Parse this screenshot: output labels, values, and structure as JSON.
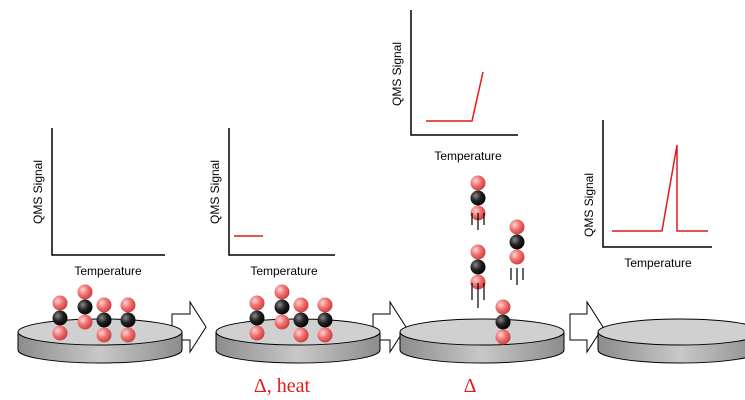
{
  "panels": [
    {
      "y_label": "QMS Signal",
      "x_label": "Temperature"
    },
    {
      "y_label": "QMS Signal",
      "x_label": "Temperature"
    },
    {
      "y_label": "QMS Signal",
      "x_label": "Temperature"
    },
    {
      "y_label": "QMS Signal",
      "x_label": "Temperature"
    }
  ],
  "captions": [
    "Δ, heat",
    "Δ"
  ]
}
